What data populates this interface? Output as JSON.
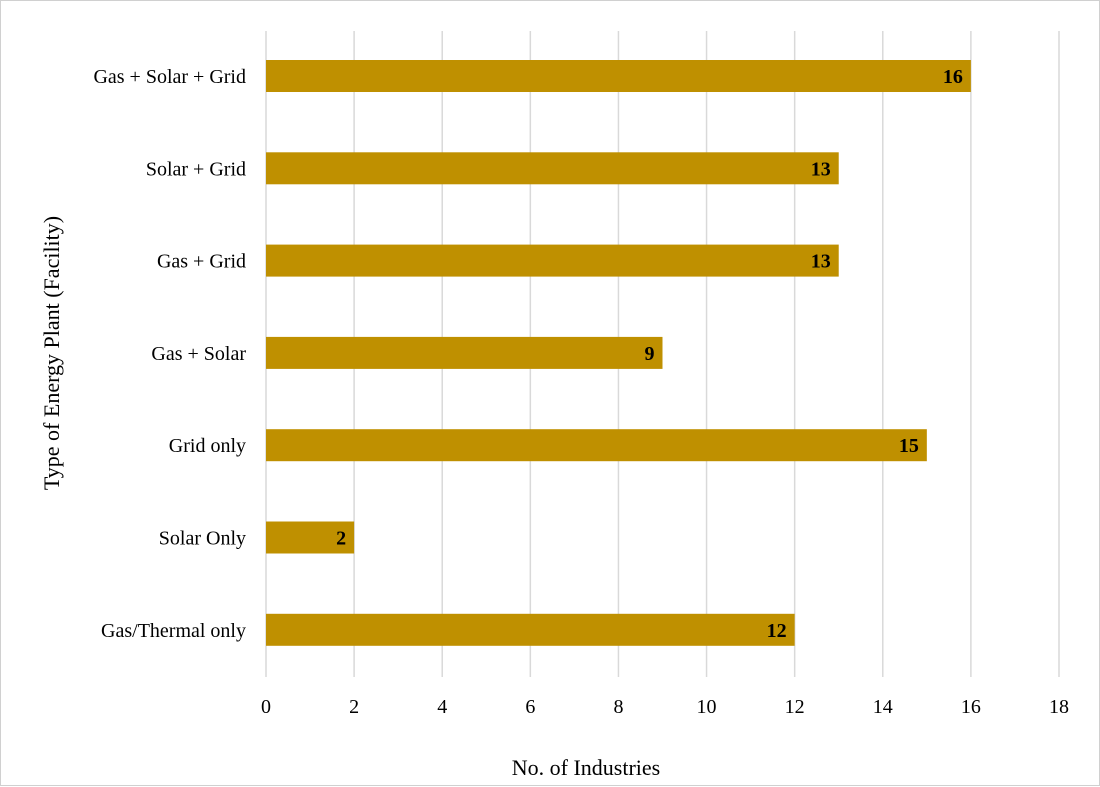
{
  "chart_data": {
    "type": "bar",
    "orientation": "horizontal",
    "categories": [
      "Gas + Solar + Grid",
      "Solar + Grid",
      "Gas + Grid",
      "Gas + Solar",
      "Grid only",
      "Solar Only",
      "Gas/Thermal only"
    ],
    "values": [
      16,
      13,
      13,
      9,
      15,
      2,
      12
    ],
    "title": "",
    "xlabel": "No. of Industries",
    "ylabel": "Type of Energy Plant (Facility)",
    "xlim": [
      0,
      18
    ],
    "xticks": [
      0,
      2,
      4,
      6,
      8,
      10,
      12,
      14,
      16,
      18
    ],
    "grid": "vertical",
    "data_labels": true,
    "colors": {
      "bar": "#bf9000",
      "grid": "#d9d9d9"
    }
  }
}
